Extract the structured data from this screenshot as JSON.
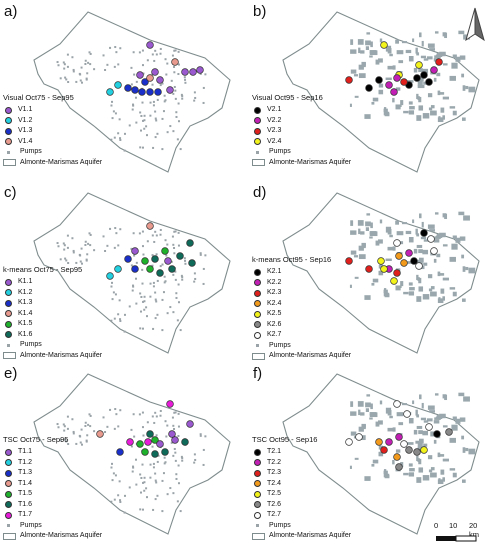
{
  "colors": {
    "outline": "#7f8c8d",
    "pumps": "#9aa3a8",
    "aquifer_fill": "#9aa8ad"
  },
  "panels": [
    {
      "id": "a",
      "label": "a)",
      "title": "Visual Oct75 - Sep95",
      "style": "pumps",
      "classes": [
        {
          "label": "V1.1",
          "color": "#9b59d0"
        },
        {
          "label": "V1.2",
          "color": "#22d0e0"
        },
        {
          "label": "V1.3",
          "color": "#1a2fc9"
        },
        {
          "label": "V1.4",
          "color": "#e89a8e"
        }
      ]
    },
    {
      "id": "b",
      "label": "b)",
      "title": "Visual Oct95 - Sep16",
      "style": "filled",
      "classes": [
        {
          "label": "V2.1",
          "color": "#000000"
        },
        {
          "label": "V2.2",
          "color": "#c21fb4"
        },
        {
          "label": "V2.3",
          "color": "#e0201c"
        },
        {
          "label": "V2.4",
          "color": "#f2f21c"
        }
      ]
    },
    {
      "id": "c",
      "label": "c)",
      "title": "k-means Oct75 - Sep95",
      "style": "pumps",
      "classes": [
        {
          "label": "K1.1",
          "color": "#9b59d0"
        },
        {
          "label": "K1.2",
          "color": "#22d0e0"
        },
        {
          "label": "K1.3",
          "color": "#1a2fc9"
        },
        {
          "label": "K1.4",
          "color": "#e89a8e"
        },
        {
          "label": "K1.5",
          "color": "#1fb02c"
        },
        {
          "label": "K1.6",
          "color": "#0f6a5a"
        }
      ]
    },
    {
      "id": "d",
      "label": "d)",
      "title": "k-means Oct95 - Sep16",
      "style": "filled",
      "classes": [
        {
          "label": "K2.1",
          "color": "#000000"
        },
        {
          "label": "K2.2",
          "color": "#c21fb4"
        },
        {
          "label": "K2.3",
          "color": "#e0201c"
        },
        {
          "label": "K2.4",
          "color": "#f29a1c"
        },
        {
          "label": "K2.5",
          "color": "#f2f21c"
        },
        {
          "label": "K2.6",
          "color": "#888888"
        },
        {
          "label": "K2.7",
          "color": "#ffffff"
        }
      ]
    },
    {
      "id": "e",
      "label": "e)",
      "title": "TSC Oct75 - Sep95",
      "style": "pumps",
      "classes": [
        {
          "label": "T1.1",
          "color": "#9b59d0"
        },
        {
          "label": "T1.2",
          "color": "#22d0e0"
        },
        {
          "label": "T1.3",
          "color": "#1a2fc9"
        },
        {
          "label": "T1.4",
          "color": "#e89a8e"
        },
        {
          "label": "T1.5",
          "color": "#1fb02c"
        },
        {
          "label": "T1.6",
          "color": "#0f6a5a"
        },
        {
          "label": "T1.7",
          "color": "#e61cd9"
        }
      ]
    },
    {
      "id": "f",
      "label": "f)",
      "title": "TSC Oct95 - Sep16",
      "style": "filled",
      "classes": [
        {
          "label": "T2.1",
          "color": "#000000"
        },
        {
          "label": "T2.2",
          "color": "#c21fb4"
        },
        {
          "label": "T2.3",
          "color": "#e0201c"
        },
        {
          "label": "T2.4",
          "color": "#f29a1c"
        },
        {
          "label": "T2.5",
          "color": "#f2f21c"
        },
        {
          "label": "T2.6",
          "color": "#888888"
        },
        {
          "label": "T2.7",
          "color": "#ffffff"
        }
      ]
    }
  ],
  "legend_common": {
    "pumps_label": "Pumps",
    "aquifer_label": "Almonte-Marismas Aquifer"
  },
  "scale": {
    "ticks": [
      "0",
      "10",
      "20 km"
    ]
  },
  "north_arrow": "north-arrow-icon"
}
